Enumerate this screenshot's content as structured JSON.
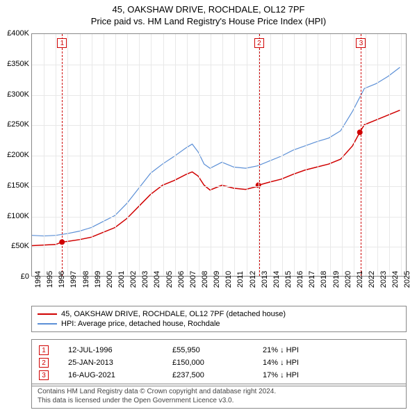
{
  "title": {
    "main": "45, OAKSHAW DRIVE, ROCHDALE, OL12 7PF",
    "sub": "Price paid vs. HM Land Registry's House Price Index (HPI)"
  },
  "chart": {
    "type": "line",
    "background_color": "#ffffff",
    "grid_color": "#e8e8e8",
    "border_color": "#888888",
    "x": {
      "min": 1994,
      "max": 2025.5,
      "ticks": [
        1994,
        1995,
        1996,
        1997,
        1998,
        1999,
        2000,
        2001,
        2002,
        2003,
        2004,
        2005,
        2006,
        2007,
        2008,
        2009,
        2010,
        2011,
        2012,
        2013,
        2014,
        2015,
        2016,
        2017,
        2018,
        2019,
        2020,
        2021,
        2022,
        2023,
        2024,
        2025
      ]
    },
    "y": {
      "min": 0,
      "max": 400000,
      "ticks": [
        0,
        50000,
        100000,
        150000,
        200000,
        250000,
        300000,
        350000,
        400000
      ],
      "labels": [
        "£0",
        "£50K",
        "£100K",
        "£150K",
        "£200K",
        "£250K",
        "£300K",
        "£350K",
        "£400K"
      ],
      "label_fontsize": 11
    },
    "series": [
      {
        "name": "price_paid",
        "label": "45, OAKSHAW DRIVE, ROCHDALE, OL12 7PF (detached house)",
        "color": "#d00000",
        "line_width": 1.5,
        "data": [
          [
            1994,
            50000
          ],
          [
            1995,
            51000
          ],
          [
            1996,
            52000
          ],
          [
            1996.53,
            55950
          ],
          [
            1997,
            57000
          ],
          [
            1998,
            60000
          ],
          [
            1999,
            64000
          ],
          [
            2000,
            72000
          ],
          [
            2001,
            80000
          ],
          [
            2002,
            95000
          ],
          [
            2003,
            115000
          ],
          [
            2004,
            135000
          ],
          [
            2005,
            150000
          ],
          [
            2006,
            158000
          ],
          [
            2007,
            168000
          ],
          [
            2007.5,
            172000
          ],
          [
            2008,
            165000
          ],
          [
            2008.5,
            150000
          ],
          [
            2009,
            142000
          ],
          [
            2010,
            150000
          ],
          [
            2011,
            145000
          ],
          [
            2012,
            143000
          ],
          [
            2013,
            148000
          ],
          [
            2013.07,
            150000
          ],
          [
            2014,
            155000
          ],
          [
            2015,
            160000
          ],
          [
            2016,
            168000
          ],
          [
            2017,
            175000
          ],
          [
            2018,
            180000
          ],
          [
            2019,
            185000
          ],
          [
            2020,
            193000
          ],
          [
            2021,
            215000
          ],
          [
            2021.62,
            237500
          ],
          [
            2022,
            250000
          ],
          [
            2023,
            258000
          ],
          [
            2024,
            266000
          ],
          [
            2025,
            274000
          ]
        ],
        "markers": [
          {
            "x": 1996.53,
            "y": 55950
          },
          {
            "x": 2013.07,
            "y": 150000
          },
          {
            "x": 2021.62,
            "y": 237500
          }
        ]
      },
      {
        "name": "hpi",
        "label": "HPI: Average price, detached house, Rochdale",
        "color": "#5b8fd6",
        "line_width": 1.2,
        "data": [
          [
            1994,
            67000
          ],
          [
            1995,
            66000
          ],
          [
            1996,
            67000
          ],
          [
            1997,
            70000
          ],
          [
            1998,
            74000
          ],
          [
            1999,
            80000
          ],
          [
            2000,
            90000
          ],
          [
            2001,
            100000
          ],
          [
            2002,
            120000
          ],
          [
            2003,
            145000
          ],
          [
            2004,
            170000
          ],
          [
            2005,
            185000
          ],
          [
            2006,
            198000
          ],
          [
            2007,
            212000
          ],
          [
            2007.5,
            218000
          ],
          [
            2008,
            205000
          ],
          [
            2008.5,
            185000
          ],
          [
            2009,
            178000
          ],
          [
            2010,
            188000
          ],
          [
            2011,
            180000
          ],
          [
            2012,
            178000
          ],
          [
            2013,
            182000
          ],
          [
            2014,
            190000
          ],
          [
            2015,
            198000
          ],
          [
            2016,
            208000
          ],
          [
            2017,
            215000
          ],
          [
            2018,
            222000
          ],
          [
            2019,
            228000
          ],
          [
            2020,
            240000
          ],
          [
            2021,
            272000
          ],
          [
            2022,
            310000
          ],
          [
            2023,
            318000
          ],
          [
            2024,
            330000
          ],
          [
            2025,
            345000
          ]
        ]
      }
    ],
    "reference_lines": [
      {
        "n": "1",
        "x": 1996.53
      },
      {
        "n": "2",
        "x": 2013.07
      },
      {
        "n": "3",
        "x": 2021.62
      }
    ],
    "ref_line_color": "#d00000"
  },
  "legend": {
    "items": [
      {
        "color": "#d00000",
        "label": "45, OAKSHAW DRIVE, ROCHDALE, OL12 7PF (detached house)"
      },
      {
        "color": "#5b8fd6",
        "label": "HPI: Average price, detached house, Rochdale"
      }
    ]
  },
  "sales": [
    {
      "n": "1",
      "date": "12-JUL-1996",
      "price": "£55,950",
      "diff": "21% ↓ HPI"
    },
    {
      "n": "2",
      "date": "25-JAN-2013",
      "price": "£150,000",
      "diff": "14% ↓ HPI"
    },
    {
      "n": "3",
      "date": "16-AUG-2021",
      "price": "£237,500",
      "diff": "17% ↓ HPI"
    }
  ],
  "footer": {
    "line1": "Contains HM Land Registry data © Crown copyright and database right 2024.",
    "line2": "This data is licensed under the Open Government Licence v3.0."
  }
}
